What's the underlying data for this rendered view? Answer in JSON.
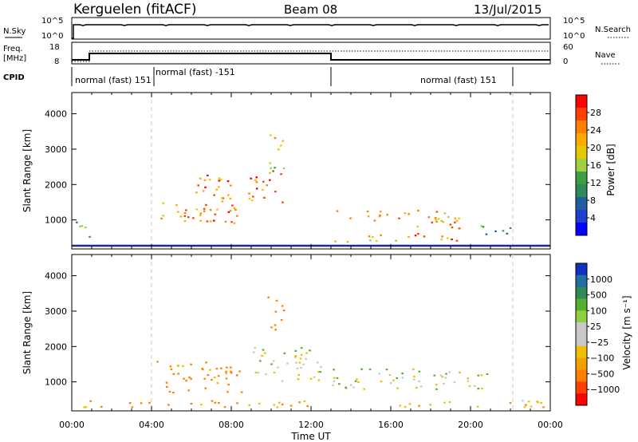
{
  "header": {
    "station": "Kerguelen (fitACF)",
    "beam": "Beam 08",
    "date": "13/Jul/2015"
  },
  "status_panels": {
    "nsky_label": "N.Sky",
    "nsky_ticks": [
      "10^5",
      "10^0"
    ],
    "nsearch_label": "N.Search",
    "nsearch_ticks": [
      "10^5",
      "10^0"
    ],
    "freq_label_1": "Freq.",
    "freq_label_2": "[MHz]",
    "freq_ticks": [
      "18",
      "8"
    ],
    "nave_label": "Nave",
    "nave_ticks": [
      "60",
      "0"
    ],
    "cpid_label": "CPID",
    "cpid_modes": [
      "normal (fast) 151",
      "normal (fast) -151",
      "normal (fast) 151"
    ]
  },
  "axes": {
    "ylabel": "Slant Range [km]",
    "yticks": [
      "4000",
      "3000",
      "2000",
      "1000"
    ],
    "xlabel": "Time UT",
    "xticks": [
      "00:00",
      "04:00",
      "08:00",
      "12:00",
      "16:00",
      "20:00",
      "00:00"
    ]
  },
  "power_colorbar": {
    "label": "Power [dB]",
    "ticks": [
      "28",
      "24",
      "20",
      "16",
      "12",
      "8",
      "4"
    ],
    "colors": [
      "#ff0000",
      "#ff4000",
      "#ff8000",
      "#ffaa00",
      "#e6c800",
      "#9ed040",
      "#3ca040",
      "#2e8b57",
      "#1f5f9f",
      "#1f3fcf",
      "#0000ff"
    ]
  },
  "velocity_colorbar": {
    "label": "Velocity [m s⁻¹]",
    "ticks": [
      "1000",
      "500",
      "100",
      "25",
      "−25",
      "−100",
      "−500",
      "−1000"
    ],
    "colors": [
      "#1030c0",
      "#1f6fa0",
      "#2e8b57",
      "#55b030",
      "#8ed040",
      "#c8c8c8",
      "#c8c8c8",
      "#f0c000",
      "#f0a000",
      "#ff8000",
      "#ff4000",
      "#ff0000"
    ]
  },
  "chart_data": [
    {
      "type": "heatmap",
      "title": "Power",
      "xlabel": "Time UT",
      "ylabel": "Slant Range [km]",
      "xlim": [
        0,
        24
      ],
      "ylim": [
        180,
        4600
      ],
      "colorbar": {
        "label": "Power [dB]",
        "range": [
          0,
          32
        ]
      },
      "regions": [
        {
          "t": [
            0.2,
            1.0
          ],
          "r": [
            400,
            1000
          ],
          "level": 14
        },
        {
          "t": [
            4.2,
            8.5
          ],
          "r": [
            900,
            1500
          ],
          "level": 24
        },
        {
          "t": [
            6.2,
            8.0
          ],
          "r": [
            1000,
            2300
          ],
          "level": 26
        },
        {
          "t": [
            8.8,
            10.6
          ],
          "r": [
            1500,
            2400
          ],
          "level": 26
        },
        {
          "t": [
            9.8,
            10.6
          ],
          "r": [
            2400,
            3500
          ],
          "level": 18
        },
        {
          "t": [
            12.6,
            19.0
          ],
          "r": [
            1000,
            1300
          ],
          "level": 22
        },
        {
          "t": [
            17.0,
            19.5
          ],
          "r": [
            400,
            1100
          ],
          "level": 26
        },
        {
          "t": [
            13.0,
            17.0
          ],
          "r": [
            400,
            600
          ],
          "level": 22
        },
        {
          "t": [
            20.5,
            22.5
          ],
          "r": [
            600,
            900
          ],
          "level": 12
        }
      ]
    },
    {
      "type": "heatmap",
      "title": "Velocity",
      "xlabel": "Time UT",
      "ylabel": "Slant Range [km]",
      "xlim": [
        0,
        24
      ],
      "ylim": [
        180,
        4600
      ],
      "colorbar": {
        "label": "Velocity [m s⁻¹]",
        "ticks": [
          1000,
          500,
          100,
          25,
          -25,
          -100,
          -500,
          -1000
        ]
      },
      "regions": [
        {
          "t": [
            4.2,
            8.5
          ],
          "r": [
            700,
            1600
          ],
          "level": -150
        },
        {
          "t": [
            9.0,
            12.5
          ],
          "r": [
            1000,
            2000
          ],
          "level": 0
        },
        {
          "t": [
            9.8,
            10.6
          ],
          "r": [
            2500,
            3500
          ],
          "level": -400
        },
        {
          "t": [
            13.0,
            21.0
          ],
          "r": [
            800,
            1400
          ],
          "level": 0
        },
        {
          "t": [
            0.5,
            12.0
          ],
          "r": [
            300,
            500
          ],
          "level": -120
        },
        {
          "t": [
            16.0,
            24.0
          ],
          "r": [
            300,
            500
          ],
          "level": -80
        }
      ]
    }
  ]
}
